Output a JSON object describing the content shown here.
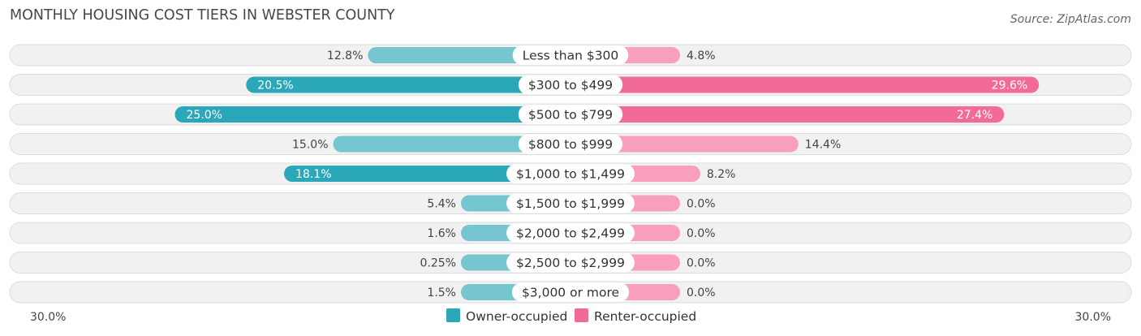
{
  "title": "MONTHLY HOUSING COST TIERS IN WEBSTER COUNTY",
  "source": "Source: ZipAtlas.com",
  "chart_data": {
    "type": "bar",
    "orientation": "diverging-horizontal",
    "categories": [
      "Less than $300",
      "$300 to $499",
      "$500 to $799",
      "$800 to $999",
      "$1,000 to $1,499",
      "$1,500 to $1,999",
      "$2,000 to $2,499",
      "$2,500 to $2,999",
      "$3,000 or more"
    ],
    "series": [
      {
        "name": "Owner-occupied",
        "color": "#2aa7b8",
        "values": [
          12.8,
          20.5,
          25.0,
          15.0,
          18.1,
          5.4,
          1.6,
          0.25,
          1.5
        ],
        "labels": [
          "12.8%",
          "20.5%",
          "25.0%",
          "15.0%",
          "18.1%",
          "5.4%",
          "1.6%",
          "0.25%",
          "1.5%"
        ]
      },
      {
        "name": "Renter-occupied",
        "color": "#f26b96",
        "values": [
          4.8,
          29.6,
          27.4,
          14.4,
          8.2,
          0.0,
          0.0,
          0.0,
          0.0
        ],
        "labels": [
          "4.8%",
          "29.6%",
          "27.4%",
          "14.4%",
          "8.2%",
          "0.0%",
          "0.0%",
          "0.0%",
          "0.0%"
        ]
      }
    ],
    "xlim": [
      -30,
      30
    ],
    "axis_labels": {
      "left": "30.0%",
      "right": "30.0%"
    },
    "legend_placement": "bottom-center"
  }
}
